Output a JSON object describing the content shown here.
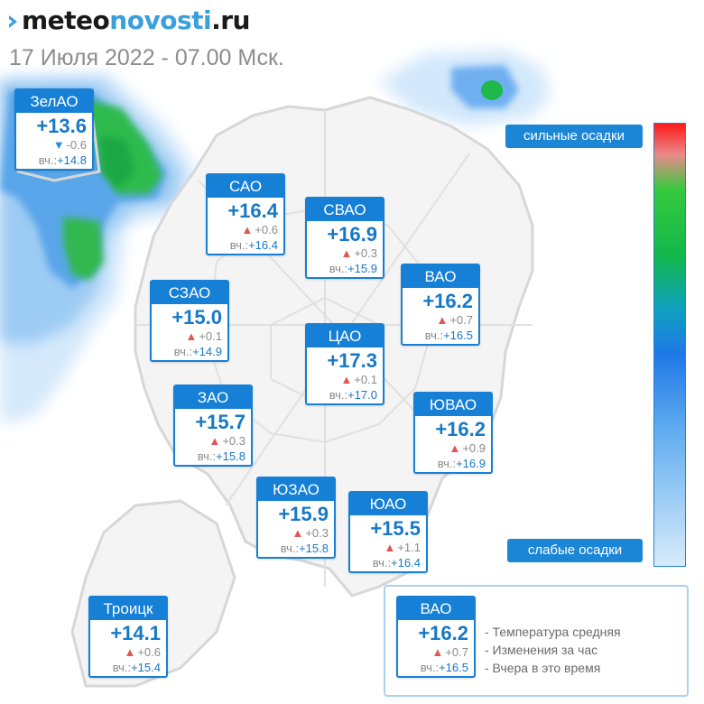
{
  "logo": {
    "part1": "meteo",
    "part2": "novosti",
    "part3": ".ru"
  },
  "date": "17 Июля 2022 - 07.00 Мск.",
  "scale": {
    "strong": "сильные осадки",
    "weak": "слабые осадки"
  },
  "districts": {
    "zelao": {
      "name": "ЗелАО",
      "temp": "+13.6",
      "change": "-0.6",
      "dir": "down",
      "yest": "+14.8"
    },
    "sao": {
      "name": "САО",
      "temp": "+16.4",
      "change": "+0.6",
      "dir": "up",
      "yest": "+16.4"
    },
    "svao": {
      "name": "СВАО",
      "temp": "+16.9",
      "change": "+0.3",
      "dir": "up",
      "yest": "+15.9"
    },
    "vao": {
      "name": "ВАО",
      "temp": "+16.2",
      "change": "+0.7",
      "dir": "up",
      "yest": "+16.5"
    },
    "szao": {
      "name": "СЗАО",
      "temp": "+15.0",
      "change": "+0.1",
      "dir": "up",
      "yest": "+14.9"
    },
    "cao": {
      "name": "ЦАО",
      "temp": "+17.3",
      "change": "+0.1",
      "dir": "up",
      "yest": "+17.0"
    },
    "zao": {
      "name": "ЗАО",
      "temp": "+15.7",
      "change": "+0.3",
      "dir": "up",
      "yest": "+15.8"
    },
    "yuvao": {
      "name": "ЮВАО",
      "temp": "+16.2",
      "change": "+0.9",
      "dir": "up",
      "yest": "+16.9"
    },
    "yuzao": {
      "name": "ЮЗАО",
      "temp": "+15.9",
      "change": "+0.3",
      "dir": "up",
      "yest": "+15.8"
    },
    "yuao": {
      "name": "ЮАО",
      "temp": "+15.5",
      "change": "+1.1",
      "dir": "up",
      "yest": "+16.4"
    },
    "troick": {
      "name": "Троицк",
      "temp": "+14.1",
      "change": "+0.6",
      "dir": "up",
      "yest": "+15.4"
    }
  },
  "yesterday_prefix": "вч.:",
  "legend": {
    "sample": {
      "name": "ВАО",
      "temp": "+16.2",
      "change": "+0.7",
      "dir": "up",
      "yest": "+16.5"
    },
    "items": [
      "- Температура средняя",
      "- Изменения за час",
      "- Вчера в это время"
    ]
  },
  "colors": {
    "accent": "#1680d6",
    "rise": "#e25555",
    "fall": "#2b8de0",
    "precip_light": "#cfe6fb",
    "precip_heavy": "#1fb84a"
  }
}
